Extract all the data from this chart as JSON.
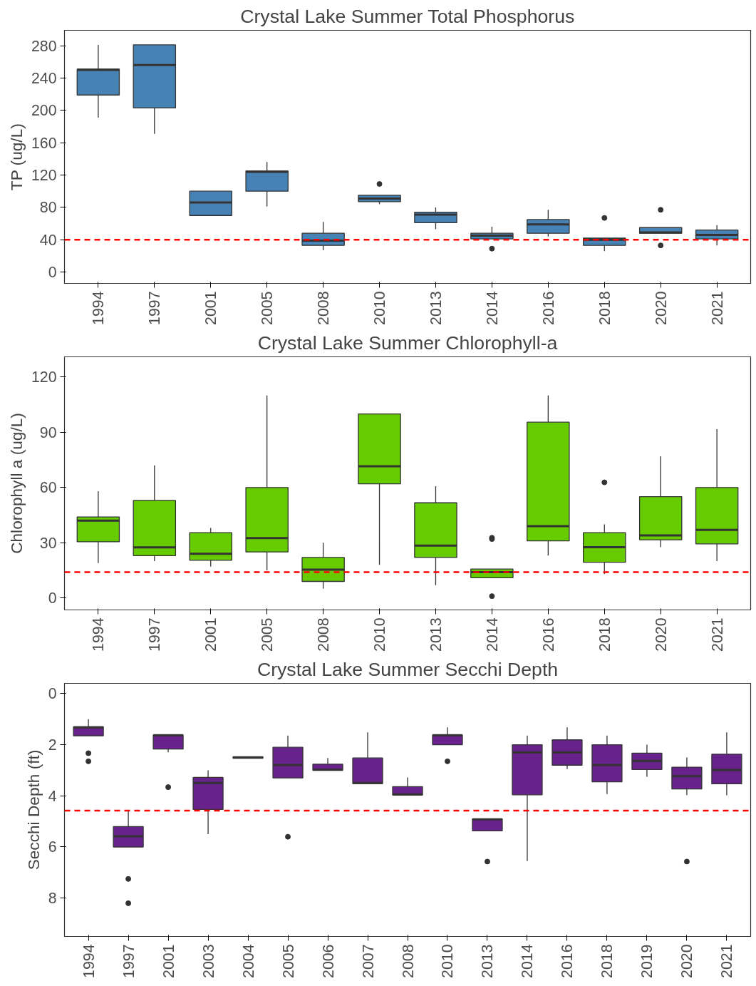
{
  "chart_data": [
    {
      "type": "box",
      "title": "Crystal Lake Summer Total Phosphorus",
      "ylabel": "TP (ug/L)",
      "categories": [
        "1994",
        "1997",
        "2001",
        "2005",
        "2008",
        "2010",
        "2013",
        "2014",
        "2016",
        "2018",
        "2020",
        "2021"
      ],
      "ylim": [
        -14,
        299
      ],
      "yticks": [
        0,
        40,
        80,
        120,
        160,
        200,
        240,
        280
      ],
      "grid": false,
      "series": [
        {
          "color": "#4682b4",
          "boxes": [
            {
              "low": 191,
              "q1": 219,
              "median": 250,
              "q3": 251,
              "high": 281
            },
            {
              "low": 171,
              "q1": 203,
              "median": 256,
              "q3": 281,
              "high": 281
            },
            {
              "low": 70,
              "q1": 70,
              "median": 86,
              "q3": 100,
              "high": 100
            },
            {
              "low": 81,
              "q1": 100,
              "median": 124,
              "q3": 125,
              "high": 136
            },
            {
              "low": 27,
              "q1": 33,
              "median": 39,
              "q3": 48,
              "high": 62
            },
            {
              "low": 84,
              "q1": 87,
              "median": 91,
              "q3": 95,
              "high": 95,
              "outliers": [
                109
              ]
            },
            {
              "low": 53,
              "q1": 61,
              "median": 71,
              "q3": 74,
              "high": 80
            },
            {
              "low": 41,
              "q1": 41,
              "median": 45,
              "q3": 48,
              "high": 56,
              "outliers": [
                29
              ]
            },
            {
              "low": 44,
              "q1": 48,
              "median": 59,
              "q3": 65,
              "high": 77
            },
            {
              "low": 26,
              "q1": 33,
              "median": 40,
              "q3": 42,
              "high": 42,
              "outliers": [
                67
              ]
            },
            {
              "low": 48,
              "q1": 48,
              "median": 49,
              "q3": 55,
              "high": 55,
              "outliers": [
                77,
                33
              ]
            },
            {
              "low": 33,
              "q1": 41,
              "median": 46,
              "q3": 52,
              "high": 58
            }
          ]
        }
      ],
      "ref_lines": [
        {
          "axis": "y",
          "value": 40,
          "color": "#ff0000",
          "line_style": "dashed"
        }
      ]
    },
    {
      "type": "box",
      "title": "Crystal Lake Summer Chlorophyll-a",
      "ylabel": "Chlorophyll a (ug/L)",
      "categories": [
        "1994",
        "1997",
        "2001",
        "2005",
        "2008",
        "2010",
        "2013",
        "2014",
        "2016",
        "2018",
        "2020",
        "2021"
      ],
      "ylim": [
        -6.5,
        131
      ],
      "yticks": [
        0,
        30,
        60,
        90,
        120
      ],
      "grid": false,
      "series": [
        {
          "color": "#66cc00",
          "boxes": [
            {
              "low": 19,
              "q1": 30.5,
              "median": 42,
              "q3": 44,
              "high": 58
            },
            {
              "low": 20,
              "q1": 23,
              "median": 27.5,
              "q3": 53,
              "high": 72
            },
            {
              "low": 17,
              "q1": 20.5,
              "median": 24,
              "q3": 35.5,
              "high": 38
            },
            {
              "low": 15,
              "q1": 25,
              "median": 32.5,
              "q3": 60,
              "high": 110
            },
            {
              "low": 5,
              "q1": 9,
              "median": 15.4,
              "q3": 22,
              "high": 30
            },
            {
              "low": 18,
              "q1": 62,
              "median": 71.5,
              "q3": 100,
              "high": 100
            },
            {
              "low": 7,
              "q1": 22,
              "median": 28.5,
              "q3": 51.7,
              "high": 60.7
            },
            {
              "low": 11,
              "q1": 11,
              "median": 14,
              "q3": 15.7,
              "high": 15.7,
              "outliers": [
                32.7,
                32,
                1
              ]
            },
            {
              "low": 23,
              "q1": 31,
              "median": 39,
              "q3": 95.5,
              "high": 110
            },
            {
              "low": 13,
              "q1": 19.4,
              "median": 27.6,
              "q3": 35.5,
              "high": 40,
              "outliers": [
                62.8
              ]
            },
            {
              "low": 27.6,
              "q1": 31.6,
              "median": 34,
              "q3": 55,
              "high": 77
            },
            {
              "low": 20,
              "q1": 29.4,
              "median": 37,
              "q3": 60,
              "high": 91.7
            }
          ]
        }
      ],
      "ref_lines": [
        {
          "axis": "y",
          "value": 14,
          "color": "#ff0000",
          "line_style": "dashed"
        }
      ]
    },
    {
      "type": "box",
      "title": "Crystal Lake Summer Secchi Depth",
      "ylabel": "Secchi Depth (ft)",
      "categories": [
        "1994",
        "1997",
        "2001",
        "2003",
        "2004",
        "2005",
        "2006",
        "2007",
        "2008",
        "2010",
        "2013",
        "2014",
        "2016",
        "2018",
        "2019",
        "2020",
        "2021"
      ],
      "ylim": [
        9.5,
        -0.4
      ],
      "yticks": [
        0,
        2,
        4,
        6,
        8
      ],
      "grid": false,
      "series": [
        {
          "color": "#68228b",
          "boxes": [
            {
              "low": 1.0,
              "q1": 1.3,
              "median": 1.32,
              "q3": 1.65,
              "high": 1.65,
              "outliers": [
                2.33,
                2.65
              ]
            },
            {
              "low": 4.6,
              "q1": 5.2,
              "median": 5.58,
              "q3": 6.0,
              "high": 6.0,
              "outliers": [
                7.25,
                8.2
              ]
            },
            {
              "low": 1.62,
              "q1": 1.62,
              "median": 1.63,
              "q3": 2.17,
              "high": 2.3,
              "outliers": [
                3.66
              ]
            },
            {
              "low": 3.0,
              "q1": 3.28,
              "median": 3.5,
              "q3": 4.53,
              "high": 5.5
            },
            {
              "low": 2.47,
              "q1": 2.47,
              "median": 2.5,
              "q3": 2.53,
              "high": 2.53
            },
            {
              "low": 1.64,
              "q1": 2.1,
              "median": 2.79,
              "q3": 3.3,
              "high": 3.3,
              "outliers": [
                5.6
              ]
            },
            {
              "low": 2.52,
              "q1": 2.76,
              "median": 2.98,
              "q3": 3.0,
              "high": 3.0
            },
            {
              "low": 1.52,
              "q1": 2.52,
              "median": 3.5,
              "q3": 3.52,
              "high": 3.52
            },
            {
              "low": 3.28,
              "q1": 3.64,
              "median": 3.94,
              "q3": 3.97,
              "high": 3.97
            },
            {
              "low": 1.32,
              "q1": 1.62,
              "median": 1.63,
              "q3": 2.0,
              "high": 2.0,
              "outliers": [
                2.65
              ]
            },
            {
              "low": 4.9,
              "q1": 4.9,
              "median": 4.92,
              "q3": 5.37,
              "high": 5.37,
              "outliers": [
                6.57
              ]
            },
            {
              "low": 1.64,
              "q1": 2.0,
              "median": 2.3,
              "q3": 3.96,
              "high": 6.55
            },
            {
              "low": 1.32,
              "q1": 1.81,
              "median": 2.3,
              "q3": 2.8,
              "high": 2.95
            },
            {
              "low": 1.64,
              "q1": 2.0,
              "median": 2.79,
              "q3": 3.45,
              "high": 3.93
            },
            {
              "low": 2.0,
              "q1": 2.33,
              "median": 2.63,
              "q3": 2.97,
              "high": 3.25
            },
            {
              "low": 2.5,
              "q1": 2.88,
              "median": 3.23,
              "q3": 3.73,
              "high": 3.97,
              "outliers": [
                6.57
              ]
            },
            {
              "low": 1.52,
              "q1": 2.37,
              "median": 2.99,
              "q3": 3.53,
              "high": 3.98
            }
          ]
        }
      ],
      "ref_lines": [
        {
          "axis": "y",
          "value": 4.58,
          "color": "#ff0000",
          "line_style": "dashed"
        }
      ]
    }
  ]
}
